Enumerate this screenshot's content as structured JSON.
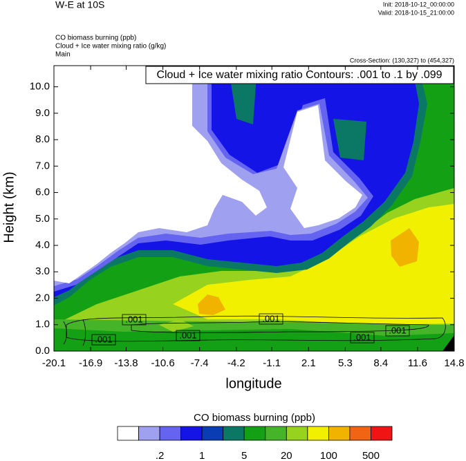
{
  "chart_data": {
    "type": "contour",
    "title": "W-E at 10S",
    "init": "Init: 2018-10-12_00:00:00",
    "valid": "Valid: 2018-10-15_21:00:00",
    "fields": [
      "CO biomass burning   (ppb)",
      "Cloud + Ice water mixing ratio   (g/kg)",
      "Main"
    ],
    "cross_section": "Cross-Section: (130,327) to (454,327)",
    "contour_info": "Cloud + Ice water mixing ratio Contours: .001 to .1 by .099",
    "contour_labels": [
      ".001",
      ".001",
      ".001",
      ".001",
      ".001",
      ".001"
    ],
    "x_label": "longitude",
    "y_label": "Height (km)",
    "xlim": [
      -20.1,
      14.8
    ],
    "xticks": [
      -20.1,
      -16.9,
      -13.8,
      -10.6,
      -7.4,
      -4.2,
      -1.1,
      2.1,
      5.3,
      8.4,
      11.6,
      14.8
    ],
    "ylim": [
      0,
      10.8
    ],
    "yticks": [
      {
        "value": 0,
        "label": "0.0"
      },
      {
        "value": 1,
        "label": "1.0"
      },
      {
        "value": 2,
        "label": "2.0"
      },
      {
        "value": 3,
        "label": "3.0"
      },
      {
        "value": 4,
        "label": "4.0"
      },
      {
        "value": 5,
        "label": "5.0"
      },
      {
        "value": 6,
        "label": "6.0"
      },
      {
        "value": 7,
        "label": "7.0"
      },
      {
        "value": 8,
        "label": "8.0"
      },
      {
        "value": 9,
        "label": "9.0"
      },
      {
        "value": 10,
        "label": "10.0"
      }
    ],
    "colorbar": {
      "title": "CO biomass burning  (ppb)",
      "colors": [
        "#ffffff",
        "#a0a0f0",
        "#6464f0",
        "#1414e6",
        "#0a3cb4",
        "#0a7864",
        "#14a014",
        "#46b428",
        "#96d21e",
        "#f0f000",
        "#f0b400",
        "#f06414",
        "#f01414"
      ],
      "ticks": [
        {
          "value": 0.2,
          "label": ".2"
        },
        1,
        5,
        20,
        100,
        500
      ]
    }
  }
}
